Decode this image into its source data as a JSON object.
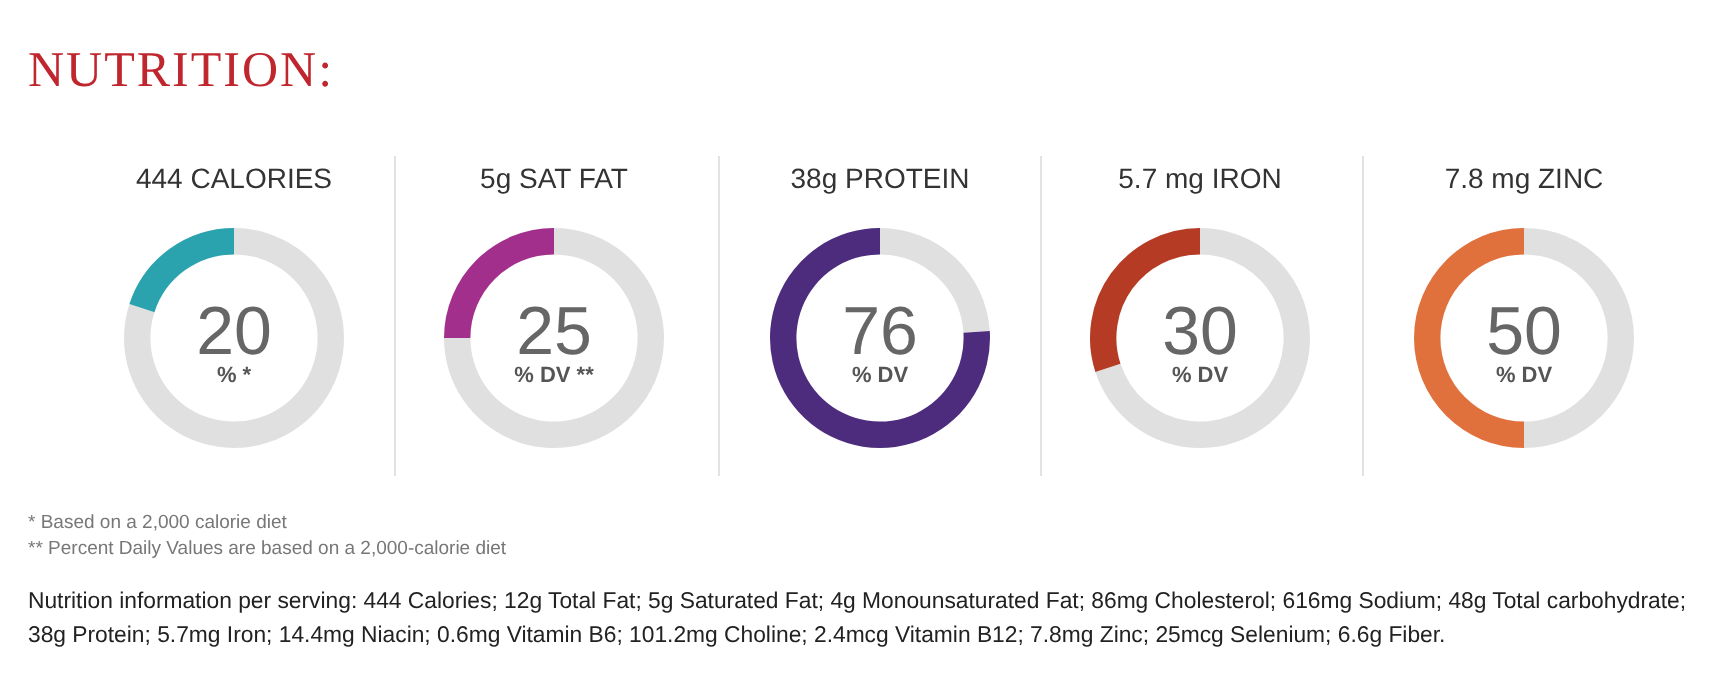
{
  "chart_data": [
    {
      "type": "other",
      "title": "NUTRITION:",
      "annotations": [
        "* Based on a 2,000 calorie diet",
        "** Percent Daily Values are based on a 2,000-calorie diet",
        "Nutrition information per serving: 444 Calories; 12g Total Fat; 5g Saturated Fat; 4g Monounsaturated Fat; 86mg Cholesterol; 616mg Sodium; 48g Total carbohydrate; 38g Protein; 5.7mg Iron; 14.4mg Niacin; 0.6mg Vitamin B6; 101.2mg Choline; 2.4mcg Vitamin B12; 7.8mg Zinc; 25mcg Selenium; 6.6g Fiber."
      ]
    },
    {
      "type": "donut",
      "title": "444 CALORIES",
      "subtitle": "% *",
      "categories": [
        null,
        null
      ],
      "values": [
        80,
        20
      ],
      "colors": [
        "#e0e0e0",
        "#2ba3ae"
      ],
      "value_labels": [
        null,
        "20"
      ]
    },
    {
      "type": "donut",
      "title": "5g SAT FAT",
      "subtitle": "% DV **",
      "categories": [
        null,
        null
      ],
      "values": [
        75,
        25
      ],
      "colors": [
        "#e0e0e0",
        "#a32f8c"
      ],
      "value_labels": [
        null,
        "25"
      ]
    },
    {
      "type": "donut",
      "title": "38g PROTEIN",
      "subtitle": "% DV",
      "categories": [
        null,
        null
      ],
      "values": [
        24,
        76
      ],
      "colors": [
        "#e0e0e0",
        "#4d2c7e"
      ],
      "value_labels": [
        null,
        "76"
      ]
    },
    {
      "type": "donut",
      "title": "5.7 mg IRON",
      "subtitle": "% DV",
      "categories": [
        null,
        null
      ],
      "values": [
        70,
        30
      ],
      "colors": [
        "#e0e0e0",
        "#b63b24"
      ],
      "value_labels": [
        null,
        "30"
      ]
    },
    {
      "type": "donut",
      "title": "7.8 mg ZINC",
      "subtitle": "% DV",
      "categories": [
        null,
        null
      ],
      "values": [
        50,
        50
      ],
      "colors": [
        "#e0e0e0",
        "#e0703c"
      ],
      "value_labels": [
        null,
        "50"
      ]
    }
  ]
}
